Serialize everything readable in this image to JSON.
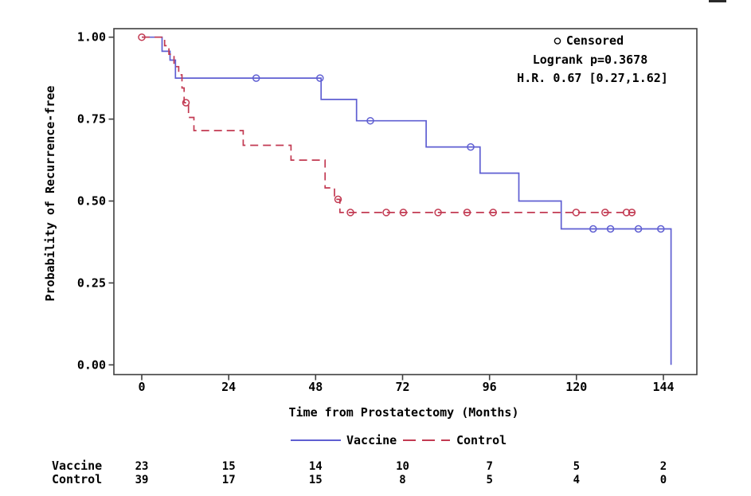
{
  "page": {
    "background": "#ffffff",
    "frame_color": "#3f3f3f",
    "text_color": "#000000"
  },
  "chart_data": {
    "type": "line",
    "subtype": "kaplan-meier-step",
    "title": "",
    "xlabel": "Time from Prostatectomy (Months)",
    "ylabel": "Probability of Recurrence-free",
    "xlim": [
      -8,
      153
    ],
    "ylim": [
      -0.03,
      1.03
    ],
    "grid": false,
    "x_ticks": [
      {
        "value": 0,
        "label": "0"
      },
      {
        "value": 24,
        "label": "24"
      },
      {
        "value": 48,
        "label": "48"
      },
      {
        "value": 72,
        "label": "72"
      },
      {
        "value": 96,
        "label": "96"
      },
      {
        "value": 120,
        "label": "120"
      },
      {
        "value": 144,
        "label": "144"
      }
    ],
    "y_ticks": [
      {
        "value": 1.0,
        "label": "1.00"
      },
      {
        "value": 0.75,
        "label": "0.75"
      },
      {
        "value": 0.5,
        "label": "0.50"
      },
      {
        "value": 0.25,
        "label": "0.25"
      },
      {
        "value": 0.0,
        "label": "0.00"
      }
    ],
    "annotations": {
      "censored_label": "Censored",
      "logrank": "Logrank p=0.3678",
      "hazard_ratio": "H.R. 0.67 [0.27,1.62]"
    },
    "series": [
      {
        "name": "Vaccine",
        "color": "#5f5fd2",
        "line_style": "solid",
        "points": [
          [
            0,
            1
          ],
          [
            5.6,
            1
          ],
          [
            5.6,
            0.957
          ],
          [
            7.8,
            0.957
          ],
          [
            7.8,
            0.93
          ],
          [
            9.3,
            0.93
          ],
          [
            9.3,
            0.875
          ],
          [
            49.5,
            0.875
          ],
          [
            49.5,
            0.81
          ],
          [
            59.3,
            0.81
          ],
          [
            59.3,
            0.745
          ],
          [
            78.5,
            0.745
          ],
          [
            78.5,
            0.665
          ],
          [
            93.4,
            0.665
          ],
          [
            93.4,
            0.585
          ],
          [
            104.1,
            0.585
          ],
          [
            104.1,
            0.5
          ],
          [
            115.8,
            0.5
          ],
          [
            115.8,
            0.415
          ],
          [
            146.1,
            0.415
          ],
          [
            146.1,
            0
          ]
        ],
        "censor_marks": [
          [
            31.6,
            0.875
          ],
          [
            49.2,
            0.875
          ],
          [
            63.1,
            0.745
          ],
          [
            90.8,
            0.665
          ],
          [
            124.6,
            0.415
          ],
          [
            129.4,
            0.415
          ],
          [
            137.1,
            0.415
          ],
          [
            143.3,
            0.415
          ]
        ]
      },
      {
        "name": "Control",
        "color": "#c23a52",
        "line_style": "dashed",
        "points": [
          [
            0,
            1
          ],
          [
            6.3,
            1
          ],
          [
            6.3,
            0.974
          ],
          [
            7.5,
            0.974
          ],
          [
            7.5,
            0.948
          ],
          [
            8.9,
            0.948
          ],
          [
            8.9,
            0.91
          ],
          [
            10.2,
            0.91
          ],
          [
            10.2,
            0.885
          ],
          [
            11.1,
            0.885
          ],
          [
            11.1,
            0.845
          ],
          [
            11.7,
            0.845
          ],
          [
            11.7,
            0.8
          ],
          [
            12.9,
            0.8
          ],
          [
            12.9,
            0.755
          ],
          [
            14.4,
            0.755
          ],
          [
            14.4,
            0.715
          ],
          [
            28,
            0.715
          ],
          [
            28,
            0.67
          ],
          [
            41.2,
            0.67
          ],
          [
            41.2,
            0.625
          ],
          [
            50.6,
            0.625
          ],
          [
            50.6,
            0.54
          ],
          [
            53.2,
            0.54
          ],
          [
            53.2,
            0.505
          ],
          [
            54.7,
            0.505
          ],
          [
            54.7,
            0.465
          ],
          [
            136,
            0.465
          ]
        ],
        "censor_marks": [
          [
            0,
            1
          ],
          [
            12.2,
            0.8
          ],
          [
            54.2,
            0.505
          ],
          [
            57.6,
            0.465
          ],
          [
            67.5,
            0.465
          ],
          [
            72.2,
            0.465
          ],
          [
            81.8,
            0.465
          ],
          [
            89.8,
            0.465
          ],
          [
            97,
            0.465
          ],
          [
            119.9,
            0.465
          ],
          [
            127.9,
            0.465
          ],
          [
            133.8,
            0.465
          ],
          [
            135.3,
            0.465
          ]
        ]
      }
    ],
    "legend": {
      "position": "bottom",
      "items": [
        {
          "label": "Vaccine",
          "style": "solid"
        },
        {
          "label": "Control",
          "style": "dashed"
        }
      ]
    },
    "risk_table": {
      "times": [
        0,
        24,
        48,
        72,
        96,
        120,
        144
      ],
      "rows": [
        {
          "label": "Vaccine",
          "color": "#5f5fd2",
          "values": [
            "23",
            "15",
            "14",
            "10",
            "7",
            "5",
            "2"
          ]
        },
        {
          "label": "Control",
          "color": "#c23a52",
          "values": [
            "39",
            "17",
            "15",
            "8",
            "5",
            "4",
            "0"
          ]
        }
      ]
    }
  }
}
